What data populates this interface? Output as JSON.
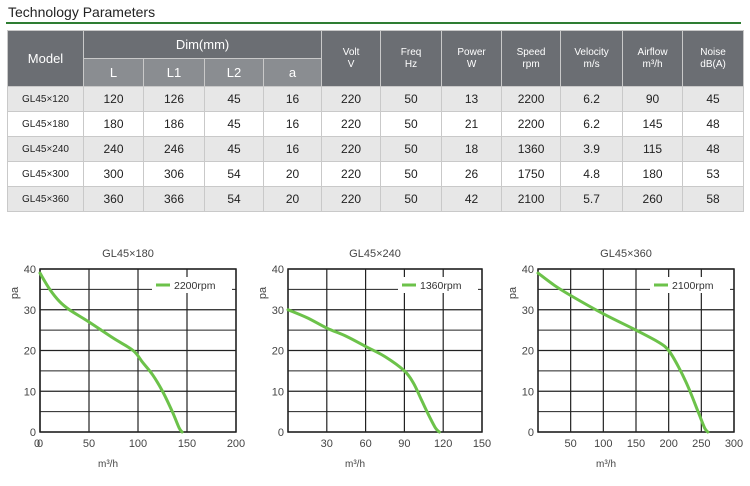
{
  "page": {
    "title": "Technology Parameters"
  },
  "table": {
    "header_top": [
      "Model",
      "Dim(mm)",
      "Volt\nV",
      "Freq\nHz",
      "Power\nW",
      "Speed\nrpm",
      "Velocity\nm/s",
      "Airflow\nm³/h",
      "Noise\ndB(A)"
    ],
    "dim_sub": [
      "L",
      "L1",
      "L2",
      "a"
    ],
    "rows": [
      [
        "GL45×120",
        "120",
        "126",
        "45",
        "16",
        "220",
        "50",
        "13",
        "2200",
        "6.2",
        "90",
        "45"
      ],
      [
        "GL45×180",
        "180",
        "186",
        "45",
        "16",
        "220",
        "50",
        "21",
        "2200",
        "6.2",
        "145",
        "48"
      ],
      [
        "GL45×240",
        "240",
        "246",
        "45",
        "16",
        "220",
        "50",
        "18",
        "1360",
        "3.9",
        "115",
        "48"
      ],
      [
        "GL45×300",
        "300",
        "306",
        "54",
        "20",
        "220",
        "50",
        "26",
        "1750",
        "4.8",
        "180",
        "53"
      ],
      [
        "GL45×360",
        "360",
        "366",
        "54",
        "20",
        "220",
        "50",
        "42",
        "2100",
        "5.7",
        "260",
        "58"
      ]
    ]
  },
  "colors": {
    "curve": "#6cc24a",
    "grid": "#222222",
    "header_bg": "#6b6e73"
  },
  "chart_data": [
    {
      "type": "line",
      "title": "GL45×180",
      "xlabel": "m³/h",
      "ylabel": "pa",
      "xlim": [
        0,
        200
      ],
      "ylim": [
        0,
        40
      ],
      "xticks": [
        0,
        50,
        100,
        150,
        200
      ],
      "yticks": [
        10,
        20,
        30,
        40
      ],
      "grid": true,
      "legend_position": "top-right",
      "series": [
        {
          "name": "2200rpm",
          "x": [
            0,
            10,
            20,
            30,
            50,
            75,
            95,
            105,
            115,
            125,
            135,
            142,
            145
          ],
          "y": [
            39,
            35,
            32,
            30,
            27,
            23,
            20,
            17,
            14,
            10,
            5,
            1,
            0
          ]
        }
      ]
    },
    {
      "type": "line",
      "title": "GL45×240",
      "xlabel": "m³/h",
      "ylabel": "pa",
      "xlim": [
        0,
        150
      ],
      "ylim": [
        0,
        40
      ],
      "xticks": [
        30,
        60,
        90,
        120,
        150
      ],
      "yticks": [
        10,
        20,
        30,
        40
      ],
      "grid": true,
      "legend_position": "top-right",
      "series": [
        {
          "name": "1360rpm",
          "x": [
            0,
            15,
            30,
            45,
            60,
            75,
            90,
            97,
            103,
            109,
            114,
            117
          ],
          "y": [
            30,
            28,
            25.5,
            23.5,
            21,
            18.5,
            15,
            12,
            8,
            4,
            1,
            0
          ]
        }
      ]
    },
    {
      "type": "line",
      "title": "GL45×360",
      "xlabel": "m³/h",
      "ylabel": "pa",
      "xlim": [
        0,
        300
      ],
      "ylim": [
        0,
        40
      ],
      "xticks": [
        50,
        100,
        150,
        200,
        250,
        300
      ],
      "yticks": [
        10,
        20,
        30,
        40
      ],
      "grid": true,
      "legend_position": "top-right",
      "series": [
        {
          "name": "2100rpm",
          "x": [
            0,
            25,
            50,
            100,
            150,
            185,
            200,
            215,
            230,
            245,
            255,
            260
          ],
          "y": [
            39,
            36,
            33.5,
            29,
            25,
            22,
            20,
            16,
            11,
            5,
            1,
            0
          ]
        }
      ]
    }
  ]
}
